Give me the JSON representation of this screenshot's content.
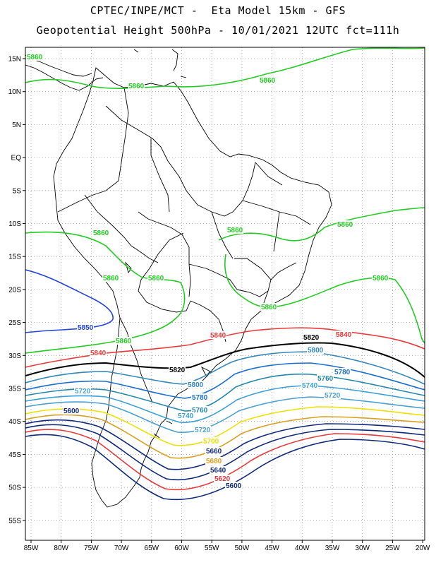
{
  "header": {
    "line1": "CPTEC/INPE/MCT -  Eta Model 15km - GFS",
    "line2": "Geopotential Height 500hPa - 10/01/2021 12UTC fct=111h"
  },
  "axes": {
    "lat_labels": [
      "15N",
      "10N",
      "5N",
      "EQ",
      "5S",
      "10S",
      "15S",
      "20S",
      "25S",
      "30S",
      "35S",
      "40S",
      "45S",
      "50S",
      "55S"
    ],
    "lon_labels": [
      "85W",
      "80W",
      "75W",
      "70W",
      "65W",
      "60W",
      "55W",
      "50W",
      "45W",
      "40W",
      "35W",
      "30W",
      "25W",
      "20W"
    ],
    "grid": "dotted"
  },
  "contours": {
    "line_colors": {
      "5860": "#22cc22",
      "5850": "#2244dd",
      "5840": "#e83a3a",
      "5820": "#000000",
      "5800": "#3388bb",
      "5780": "#1a6fd0",
      "5760": "#2288aa",
      "5740": "#3aa0d8",
      "5720": "#4aa0d0",
      "5700": "#f0e000",
      "5680": "#d9a020",
      "5660": "#102a7a",
      "5640": "#102a7a",
      "5620": "#e83a3a",
      "5600": "#102a7a"
    },
    "labels": {
      "c5860": "5860",
      "c5850": "5850",
      "c5840": "5840",
      "c5820": "5820",
      "c5800": "5800",
      "c5780": "5780",
      "c5760": "5760",
      "c5740": "5740",
      "c5720": "5720",
      "c5700": "5700",
      "c5680": "5680",
      "c5660": "5660",
      "c5640": "5640",
      "c5620": "5620",
      "c5600": "5600"
    }
  }
}
